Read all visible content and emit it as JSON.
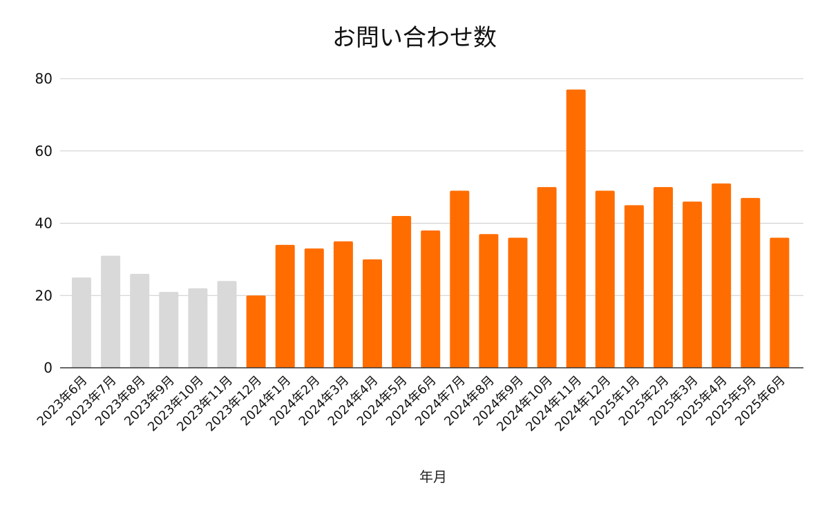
{
  "chart_data": {
    "type": "bar",
    "title": "お問い合わせ数",
    "xlabel": "年月",
    "ylabel": "",
    "ylim": [
      0,
      80
    ],
    "yticks": [
      0,
      20,
      40,
      60,
      80
    ],
    "grid": true,
    "legend": "none",
    "categories": [
      "2023年6月",
      "2023年7月",
      "2023年8月",
      "2023年9月",
      "2023年10月",
      "2023年11月",
      "2023年12月",
      "2024年1月",
      "2024年2月",
      "2024年3月",
      "2024年4月",
      "2024年5月",
      "2024年6月",
      "2024年7月",
      "2024年8月",
      "2024年9月",
      "2024年10月",
      "2024年11月",
      "2024年12月",
      "2025年1月",
      "2025年2月",
      "2025年3月",
      "2025年4月",
      "2025年5月",
      "2025年6月"
    ],
    "values": [
      25,
      31,
      26,
      21,
      22,
      24,
      20,
      34,
      33,
      35,
      30,
      42,
      38,
      49,
      37,
      36,
      50,
      77,
      49,
      45,
      50,
      46,
      51,
      47,
      36
    ],
    "highlight_start_index": 6,
    "colors": {
      "muted": "#d9d9d9",
      "highlight": "#ff6d01",
      "grid": "#cccccc",
      "axis": "#333333"
    }
  }
}
